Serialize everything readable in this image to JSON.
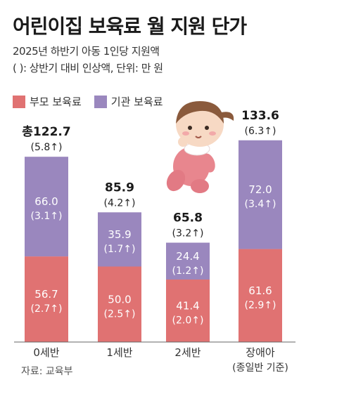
{
  "title": "어린이집 보육료 월 지원 단가",
  "subtitle_line1": "2025년 하반기 아동 1인당 지원액",
  "subtitle_line2": "( ): 상반기 대비 인상액, 단위: 만 원",
  "source": "자료: 교육부",
  "colors": {
    "parent": "#e07272",
    "institution": "#9a87be"
  },
  "chart_data": {
    "type": "bar",
    "stacked": true,
    "title": "어린이집 보육료 월 지원 단가",
    "categories": [
      "0세반",
      "1세반",
      "2세반",
      "장애아"
    ],
    "category_notes": [
      "",
      "",
      "",
      "(종일반 기준)"
    ],
    "series": [
      {
        "name": "부모 보육료",
        "values": [
          56.7,
          50.0,
          41.4,
          61.6
        ],
        "labels": [
          "56.7",
          "50.0",
          "41.4",
          "61.6"
        ],
        "increase_labels": [
          "(2.7↑)",
          "(2.5↑)",
          "(2.0↑)",
          "(2.9↑)"
        ]
      },
      {
        "name": "기관 보육료",
        "values": [
          66.0,
          35.9,
          24.4,
          72.0
        ],
        "labels": [
          "66.0",
          "35.9",
          "24.4",
          "72.0"
        ],
        "increase_labels": [
          "(3.1↑)",
          "(1.7↑)",
          "(1.2↑)",
          "(3.4↑)"
        ]
      }
    ],
    "totals": [
      122.7,
      85.9,
      65.8,
      133.6
    ],
    "total_labels": [
      "총122.7",
      "85.9",
      "65.8",
      "133.6"
    ],
    "total_increase_labels": [
      "(5.8↑)",
      "(4.2↑)",
      "(3.2↑)",
      "(6.3↑)"
    ],
    "unit": "만 원",
    "legend": "top-left",
    "grid": false
  }
}
